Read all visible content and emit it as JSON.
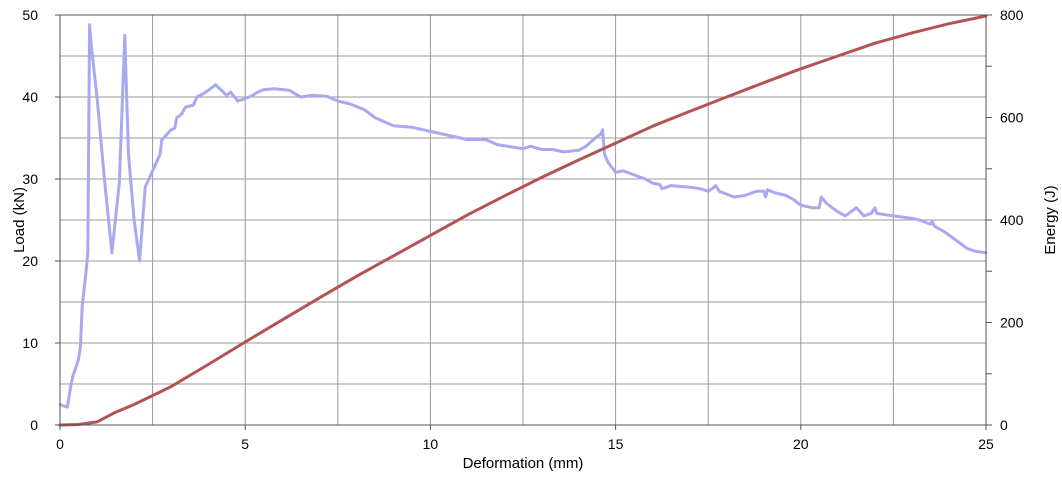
{
  "chart_data": {
    "type": "line",
    "xlabel": "Deformation (mm)",
    "ylabel_left": "Load (kN)",
    "ylabel_right": "Energy (J)",
    "xlim": [
      0,
      25
    ],
    "ylim_left": [
      0,
      50
    ],
    "ylim_right": [
      0,
      800
    ],
    "x_ticks": [
      0,
      5,
      10,
      15,
      20,
      25
    ],
    "y_left_ticks": [
      0,
      10,
      20,
      30,
      40,
      50
    ],
    "y_right_ticks": [
      0,
      200,
      400,
      600,
      800
    ],
    "grid": true,
    "series": [
      {
        "axis": "left",
        "color": "#a9a8f0",
        "x": [
          0.0,
          0.1,
          0.2,
          0.3,
          0.35,
          0.5,
          0.55,
          0.6,
          0.7,
          0.75,
          0.8,
          0.85,
          1.0,
          1.2,
          1.4,
          1.6,
          1.75,
          1.8,
          1.85,
          2.0,
          2.15,
          2.3,
          2.35,
          2.4,
          2.6,
          2.7,
          2.75,
          2.8,
          2.9,
          3.0,
          3.1,
          3.15,
          3.2,
          3.3,
          3.35,
          3.4,
          3.6,
          3.65,
          3.7,
          3.9,
          4.0,
          4.2,
          4.5,
          4.6,
          4.8,
          5.0,
          5.2,
          5.3,
          5.5,
          5.8,
          6.2,
          6.5,
          6.8,
          7.2,
          7.5,
          7.8,
          8.2,
          8.5,
          9.0,
          9.5,
          10.0,
          10.5,
          11.0,
          11.5,
          11.8,
          12.2,
          12.5,
          12.7,
          13.0,
          13.3,
          13.6,
          14.0,
          14.2,
          14.45,
          14.6,
          14.65,
          14.7,
          14.75,
          14.8,
          15.0,
          15.2,
          15.5,
          15.8,
          16.0,
          16.2,
          16.25,
          16.5,
          17.0,
          17.3,
          17.5,
          17.6,
          17.7,
          17.8,
          18.2,
          18.5,
          18.8,
          19.0,
          19.05,
          19.1,
          19.3,
          19.6,
          19.8,
          20.0,
          20.3,
          20.5,
          20.55,
          20.7,
          21.0,
          21.2,
          21.5,
          21.7,
          21.9,
          22.0,
          22.05,
          22.5,
          23.0,
          23.2,
          23.5,
          23.55,
          23.6,
          23.7,
          23.9,
          24.2,
          24.5,
          24.7,
          25.0
        ],
        "values": [
          2.5,
          2.3,
          2.2,
          5.0,
          6.0,
          8.0,
          9.5,
          14.5,
          18.5,
          21.0,
          48.8,
          46.0,
          40.0,
          30.0,
          21.0,
          29.5,
          47.5,
          40.0,
          33.0,
          25.0,
          20.0,
          29.0,
          29.5,
          30.0,
          32.0,
          33.0,
          34.8,
          35.0,
          35.5,
          36.0,
          36.2,
          37.5,
          37.6,
          38.0,
          38.5,
          38.8,
          39.0,
          39.5,
          40.0,
          40.5,
          40.8,
          41.5,
          40.2,
          40.6,
          39.5,
          39.8,
          40.2,
          40.5,
          40.9,
          41.0,
          40.8,
          40.0,
          40.2,
          40.1,
          39.5,
          39.2,
          38.5,
          37.5,
          36.5,
          36.3,
          35.8,
          35.3,
          34.8,
          34.8,
          34.2,
          33.9,
          33.7,
          34.0,
          33.6,
          33.6,
          33.3,
          33.5,
          34.0,
          35.0,
          35.5,
          36.0,
          33.0,
          32.5,
          32.0,
          30.8,
          31.0,
          30.5,
          30.0,
          29.5,
          29.3,
          28.8,
          29.2,
          29.0,
          28.8,
          28.5,
          28.8,
          29.2,
          28.5,
          27.8,
          28.0,
          28.5,
          28.5,
          27.8,
          28.7,
          28.3,
          28.0,
          27.5,
          26.8,
          26.5,
          26.5,
          27.8,
          27.0,
          26.0,
          25.5,
          26.5,
          25.5,
          25.8,
          26.5,
          25.8,
          25.5,
          25.2,
          25.0,
          24.5,
          24.8,
          24.3,
          24.0,
          23.5,
          22.5,
          21.5,
          21.2,
          21.0
        ]
      },
      {
        "axis": "right",
        "color": "#b35454",
        "x": [
          0,
          0.5,
          1,
          1.5,
          2,
          3,
          4,
          5,
          6,
          7,
          8,
          9,
          10,
          11,
          12,
          13,
          14,
          15,
          16,
          17,
          18,
          19,
          20,
          21,
          22,
          23,
          24,
          25
        ],
        "values": [
          0,
          1,
          6,
          25,
          40,
          75,
          118,
          162,
          205,
          248,
          290,
          330,
          370,
          410,
          447,
          483,
          517,
          550,
          583,
          612,
          640,
          668,
          695,
          720,
          745,
          765,
          783,
          798
        ]
      }
    ]
  }
}
